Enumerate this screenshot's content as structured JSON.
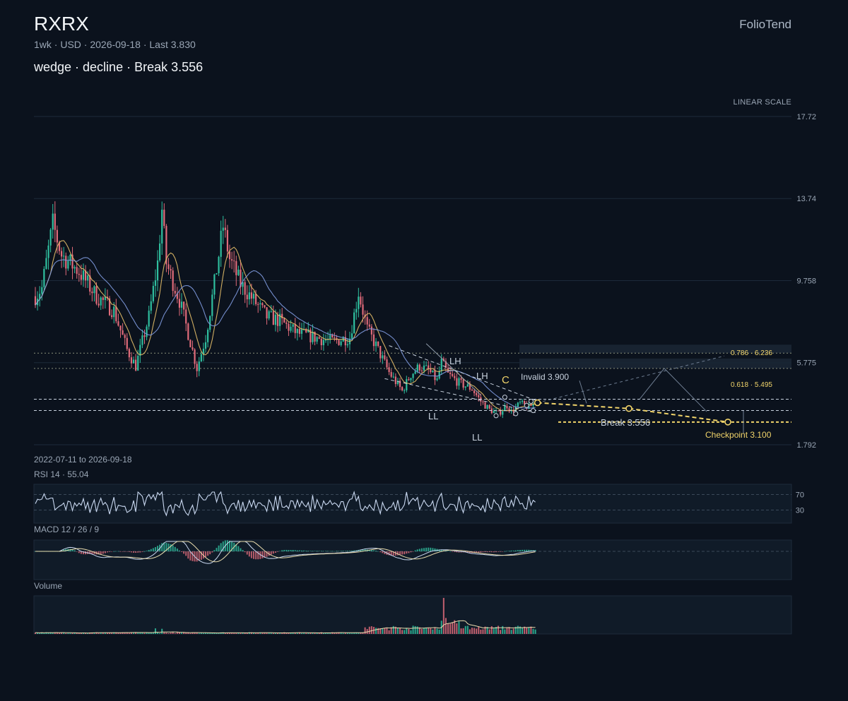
{
  "header": {
    "ticker": "RXRX",
    "meta": "1wk · USD · 2026-09-18 · Last 3.830",
    "subtitle": "wedge · decline · Break 3.556",
    "brand": "FolioTend",
    "scale": "LINEAR SCALE",
    "range": "2022-07-11 to 2026-09-18"
  },
  "colors": {
    "background": "#0b121d",
    "up": "#2fbf9f",
    "down": "#e06b7a",
    "ma_fast": "#e7c06a",
    "ma_slow": "#7f9be0",
    "accent": "#f1d46a",
    "grid": "#1c2a3a"
  },
  "chart_data": [
    {
      "type": "candlestick",
      "title": "RXRX",
      "y_ticks": [
        "17.72",
        "13.74",
        "9.758",
        "5.775",
        "1.792"
      ],
      "ylim": [
        1.792,
        17.72
      ],
      "x_range": [
        "2022-07-11",
        "2026-09-18"
      ],
      "last": 3.83,
      "anchors": [
        [
          0,
          9.0
        ],
        [
          3,
          9.4
        ],
        [
          8,
          12.5
        ],
        [
          12,
          11.0
        ],
        [
          20,
          10.2
        ],
        [
          28,
          9.0
        ],
        [
          36,
          8.3
        ],
        [
          42,
          6.4
        ],
        [
          46,
          5.6
        ],
        [
          52,
          8.0
        ],
        [
          56,
          10.6
        ],
        [
          58,
          13.2
        ],
        [
          60,
          10.6
        ],
        [
          66,
          8.8
        ],
        [
          70,
          7.2
        ],
        [
          74,
          5.5
        ],
        [
          78,
          7.0
        ],
        [
          82,
          9.6
        ],
        [
          86,
          12.4
        ],
        [
          89,
          10.8
        ],
        [
          94,
          9.6
        ],
        [
          100,
          8.8
        ],
        [
          106,
          8.0
        ],
        [
          112,
          7.8
        ],
        [
          120,
          7.2
        ],
        [
          128,
          7.0
        ],
        [
          136,
          6.8
        ],
        [
          144,
          7.0
        ],
        [
          148,
          9.2
        ],
        [
          152,
          7.4
        ],
        [
          156,
          6.6
        ],
        [
          162,
          5.3
        ],
        [
          168,
          4.4
        ],
        [
          172,
          5.2
        ],
        [
          176,
          5.6
        ],
        [
          180,
          5.4
        ],
        [
          184,
          4.9
        ],
        [
          186,
          5.8
        ],
        [
          189,
          5.2
        ],
        [
          194,
          4.8
        ],
        [
          200,
          4.5
        ],
        [
          204,
          3.9
        ],
        [
          208,
          3.5
        ],
        [
          212,
          3.3
        ],
        [
          216,
          3.7
        ],
        [
          218,
          3.4
        ],
        [
          222,
          3.8
        ],
        [
          226,
          3.6
        ],
        [
          229,
          3.83
        ]
      ],
      "n_candles": 230,
      "patterns": {
        "labels": [
          "LH",
          "LH",
          "C",
          "LL",
          "LL"
        ],
        "invalid": "Invalid 3.900",
        "break": "Break 3.556",
        "checkpoint": "Checkpoint 3.100",
        "fib": [
          {
            "label": "0.786 · 6.236",
            "value": 6.236
          },
          {
            "label": "0.618 · 5.495",
            "value": 5.495
          }
        ],
        "invalid_value": 3.9,
        "break_value": 3.556,
        "checkpoint_value": 3.1
      }
    },
    {
      "type": "line",
      "title": "RSI 14 · 55.04",
      "levels": [
        "70",
        "30"
      ],
      "last": 55.04
    },
    {
      "type": "line",
      "title": "MACD 12 / 26 / 9"
    },
    {
      "type": "bar",
      "title": "Volume"
    }
  ]
}
